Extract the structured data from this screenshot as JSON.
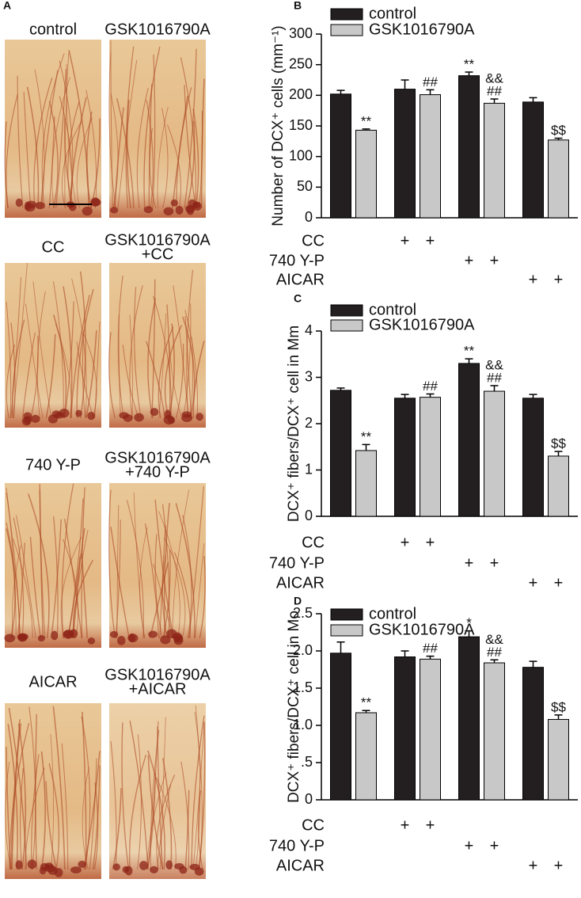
{
  "panel_a": {
    "label": "A",
    "images": [
      {
        "lines": [
          "control"
        ]
      },
      {
        "lines": [
          "GSK1016790A"
        ]
      },
      {
        "lines": [
          "CC"
        ]
      },
      {
        "lines": [
          "GSK1016790A",
          "+CC"
        ]
      },
      {
        "lines": [
          "740 Y-P"
        ]
      },
      {
        "lines": [
          "GSK1016790A",
          "+740 Y-P"
        ]
      },
      {
        "lines": [
          "AICAR"
        ]
      },
      {
        "lines": [
          "GSK1016790A",
          "+AICAR"
        ]
      }
    ]
  },
  "chart_data": [
    {
      "type": "bar",
      "panel_label": "B",
      "ylabel": "Number of DCX⁺ cells (mm⁻¹)",
      "categories": [
        null,
        null,
        null,
        null
      ],
      "ylim": [
        0,
        300
      ],
      "yticks": [
        0,
        50,
        100,
        150,
        200,
        250,
        300
      ],
      "legend": "upper left",
      "series": [
        {
          "name": "control",
          "color": "#231f20",
          "values": [
            202,
            210,
            232,
            189
          ],
          "errors": [
            6,
            15,
            6,
            7
          ],
          "annotations": [
            null,
            null,
            [
              "**"
            ],
            null
          ]
        },
        {
          "name": "GSK1016790A",
          "color": "#c8c8c8",
          "values": [
            143,
            201,
            187,
            127
          ],
          "errors": [
            2,
            8,
            7,
            3
          ],
          "annotations": [
            [
              "**"
            ],
            [
              "##"
            ],
            [
              "&&",
              "##"
            ],
            [
              "$$"
            ]
          ]
        }
      ],
      "treatments": [
        {
          "name": "CC",
          "signs": [
            null,
            null,
            "+",
            "+",
            null,
            null,
            null,
            null
          ]
        },
        {
          "name": "740 Y-P",
          "signs": [
            null,
            null,
            null,
            null,
            "+",
            "+",
            null,
            null
          ]
        },
        {
          "name": "AICAR",
          "signs": [
            null,
            null,
            null,
            null,
            null,
            null,
            "+",
            "+"
          ]
        }
      ]
    },
    {
      "type": "bar",
      "panel_label": "C",
      "ylabel": "DCX⁺ fibers/DCX⁺ cell in Mm",
      "categories": [
        null,
        null,
        null,
        null
      ],
      "ylim": [
        0,
        4
      ],
      "yticks": [
        0,
        1,
        2,
        3,
        4
      ],
      "legend": "upper left",
      "series": [
        {
          "name": "control",
          "color": "#231f20",
          "values": [
            2.72,
            2.55,
            3.3,
            2.55
          ],
          "errors": [
            0.05,
            0.08,
            0.1,
            0.08
          ],
          "annotations": [
            null,
            null,
            [
              "**"
            ],
            null
          ]
        },
        {
          "name": "GSK1016790A",
          "color": "#c8c8c8",
          "values": [
            1.42,
            2.57,
            2.7,
            1.3
          ],
          "errors": [
            0.13,
            0.07,
            0.12,
            0.1
          ],
          "annotations": [
            [
              "**"
            ],
            [
              "##"
            ],
            [
              "&&",
              "##"
            ],
            [
              "$$"
            ]
          ]
        }
      ],
      "treatments": [
        {
          "name": "CC",
          "signs": [
            null,
            null,
            "+",
            "+",
            null,
            null,
            null,
            null
          ]
        },
        {
          "name": "740 Y-P",
          "signs": [
            null,
            null,
            null,
            null,
            "+",
            "+",
            null,
            null
          ]
        },
        {
          "name": "AICAR",
          "signs": [
            null,
            null,
            null,
            null,
            null,
            null,
            "+",
            "+"
          ]
        }
      ]
    },
    {
      "type": "bar",
      "panel_label": "D",
      "ylabel": "DCX⁺ fibers/DCX⁺ cell in Mo",
      "categories": [
        null,
        null,
        null,
        null
      ],
      "ylim": [
        0,
        2.5
      ],
      "yticks": [
        0,
        {
          "value": 0.5,
          "label": ".5"
        },
        {
          "value": 1,
          "label": "1.0"
        },
        {
          "value": 1.5,
          "label": "1.5"
        },
        {
          "value": 2,
          "label": "2.0"
        },
        {
          "value": 2.5,
          "label": "2.5"
        }
      ],
      "legend": "upper left",
      "series": [
        {
          "name": "control",
          "color": "#231f20",
          "values": [
            1.97,
            1.92,
            2.19,
            1.78
          ],
          "errors": [
            0.15,
            0.08,
            0.08,
            0.08
          ],
          "annotations": [
            null,
            null,
            [
              "*"
            ],
            null
          ]
        },
        {
          "name": "GSK1016790A",
          "color": "#c8c8c8",
          "values": [
            1.17,
            1.89,
            1.84,
            1.08
          ],
          "errors": [
            0.03,
            0.04,
            0.04,
            0.06
          ],
          "annotations": [
            [
              "**"
            ],
            [
              "##"
            ],
            [
              "&&",
              "##"
            ],
            [
              "$$"
            ]
          ]
        }
      ],
      "treatments": [
        {
          "name": "CC",
          "signs": [
            null,
            null,
            "+",
            "+",
            null,
            null,
            null,
            null
          ]
        },
        {
          "name": "740 Y-P",
          "signs": [
            null,
            null,
            null,
            null,
            "+",
            "+",
            null,
            null
          ]
        },
        {
          "name": "AICAR",
          "signs": [
            null,
            null,
            null,
            null,
            null,
            null,
            "+",
            "+"
          ]
        }
      ]
    }
  ]
}
